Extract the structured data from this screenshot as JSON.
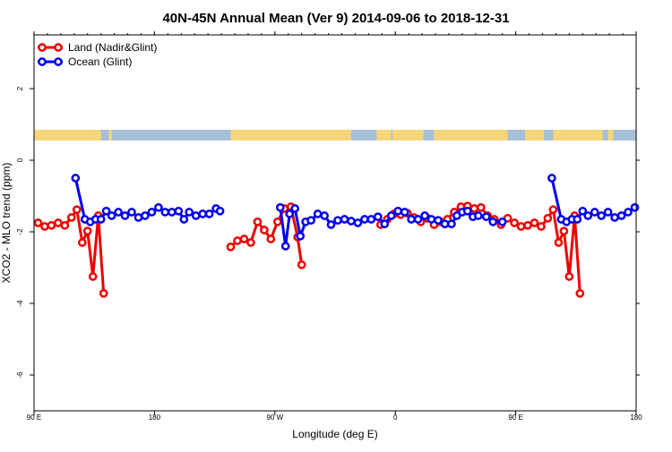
{
  "chart_data": {
    "type": "line",
    "title": "40N-45N Annual Mean (Ver 9)   2014-09-06 to 2018-12-31",
    "xlabel": "Longitude (deg E)",
    "ylabel": "XCO2 - MLO trend (ppm)",
    "xlim": [
      90,
      540
    ],
    "ylim": [
      -7,
      3.5
    ],
    "x_ticks": [
      {
        "value": 90,
        "label": "90 E"
      },
      {
        "value": 180,
        "label": "180"
      },
      {
        "value": 270,
        "label": "90 W"
      },
      {
        "value": 360,
        "label": "0"
      },
      {
        "value": 450,
        "label": "90 E"
      },
      {
        "value": 540,
        "label": "180"
      }
    ],
    "y_ticks": [
      {
        "value": 2,
        "label": "2"
      },
      {
        "value": 0,
        "label": "0"
      },
      {
        "value": -2,
        "label": "-2"
      },
      {
        "value": -4,
        "label": "-4"
      },
      {
        "value": -6,
        "label": "-6"
      }
    ],
    "legend_position": "top-left",
    "land_ocean_strip": {
      "y_range": [
        0.55,
        0.85
      ],
      "ocean_color": "#a8bfd9",
      "land_color": "#f7d67a",
      "land_segments": [
        [
          90,
          140
        ],
        [
          146,
          148
        ],
        [
          237,
          327
        ],
        [
          346,
          357
        ],
        [
          358,
          381
        ],
        [
          389,
          444
        ],
        [
          457,
          471
        ],
        [
          478,
          515
        ],
        [
          519,
          523
        ]
      ]
    },
    "series": [
      {
        "name": "Land (Nadir&Glint)",
        "color": "#ee0000",
        "segments": [
          [
            [
              93,
              -1.75
            ],
            [
              98,
              -1.85
            ],
            [
              103,
              -1.82
            ],
            [
              108,
              -1.75
            ],
            [
              113,
              -1.82
            ],
            [
              118,
              -1.6
            ],
            [
              122,
              -1.38
            ],
            [
              126,
              -2.3
            ],
            [
              130,
              -1.98
            ],
            [
              134,
              -3.25
            ],
            [
              138,
              -1.55
            ],
            [
              142,
              -3.72
            ]
          ],
          [
            [
              237,
              -2.42
            ],
            [
              242,
              -2.25
            ],
            [
              247,
              -2.2
            ],
            [
              252,
              -2.3
            ],
            [
              257,
              -1.72
            ],
            [
              262,
              -1.95
            ],
            [
              267,
              -2.2
            ],
            [
              272,
              -1.72
            ],
            [
              277,
              -1.35
            ],
            [
              282,
              -1.3
            ],
            [
              287,
              -2.15
            ],
            [
              290,
              -2.92
            ]
          ],
          [
            [
              349,
              -1.8
            ],
            [
              354,
              -1.65
            ],
            [
              359,
              -1.5
            ],
            [
              364,
              -1.52
            ],
            [
              369,
              -1.48
            ],
            [
              374,
              -1.6
            ],
            [
              379,
              -1.72
            ],
            [
              384,
              -1.62
            ],
            [
              389,
              -1.8
            ],
            [
              394,
              -1.72
            ],
            [
              399,
              -1.65
            ],
            [
              404,
              -1.45
            ],
            [
              409,
              -1.3
            ],
            [
              414,
              -1.28
            ],
            [
              419,
              -1.35
            ],
            [
              424,
              -1.32
            ],
            [
              429,
              -1.55
            ],
            [
              434,
              -1.65
            ],
            [
              439,
              -1.8
            ],
            [
              444,
              -1.62
            ],
            [
              449,
              -1.75
            ],
            [
              454,
              -1.85
            ],
            [
              459,
              -1.82
            ],
            [
              464,
              -1.75
            ],
            [
              469,
              -1.85
            ],
            [
              474,
              -1.62
            ],
            [
              478,
              -1.38
            ],
            [
              482,
              -2.3
            ],
            [
              486,
              -1.98
            ],
            [
              490,
              -3.25
            ],
            [
              494,
              -1.55
            ],
            [
              498,
              -3.72
            ]
          ]
        ]
      },
      {
        "name": "Ocean (Glint)",
        "color": "#0000ee",
        "segments": [
          [
            [
              121,
              -0.5
            ],
            [
              128,
              -1.65
            ],
            [
              132,
              -1.72
            ],
            [
              136,
              -1.65
            ],
            [
              140,
              -1.65
            ],
            [
              144,
              -1.42
            ],
            [
              148,
              -1.55
            ],
            [
              153,
              -1.45
            ],
            [
              158,
              -1.55
            ],
            [
              163,
              -1.45
            ],
            [
              168,
              -1.6
            ],
            [
              173,
              -1.55
            ],
            [
              178,
              -1.45
            ],
            [
              183,
              -1.32
            ],
            [
              188,
              -1.45
            ],
            [
              193,
              -1.45
            ],
            [
              198,
              -1.42
            ],
            [
              202,
              -1.65
            ],
            [
              206,
              -1.45
            ],
            [
              211,
              -1.55
            ],
            [
              216,
              -1.5
            ],
            [
              221,
              -1.5
            ],
            [
              226,
              -1.35
            ],
            [
              229,
              -1.42
            ]
          ],
          [
            [
              274,
              -1.32
            ],
            [
              278,
              -2.4
            ],
            [
              281,
              -1.5
            ],
            [
              285,
              -1.35
            ],
            [
              289,
              -2.12
            ],
            [
              293,
              -1.72
            ],
            [
              297,
              -1.68
            ],
            [
              302,
              -1.5
            ],
            [
              307,
              -1.55
            ],
            [
              312,
              -1.8
            ],
            [
              317,
              -1.68
            ],
            [
              322,
              -1.65
            ],
            [
              327,
              -1.7
            ],
            [
              332,
              -1.75
            ],
            [
              337,
              -1.65
            ],
            [
              342,
              -1.65
            ],
            [
              347,
              -1.58
            ],
            [
              352,
              -1.78
            ],
            [
              357,
              -1.55
            ],
            [
              362,
              -1.42
            ],
            [
              367,
              -1.45
            ],
            [
              372,
              -1.65
            ],
            [
              377,
              -1.65
            ],
            [
              382,
              -1.55
            ],
            [
              387,
              -1.65
            ],
            [
              392,
              -1.68
            ],
            [
              397,
              -1.78
            ],
            [
              402,
              -1.78
            ],
            [
              406,
              -1.55
            ],
            [
              410,
              -1.45
            ],
            [
              414,
              -1.42
            ],
            [
              418,
              -1.58
            ],
            [
              422,
              -1.55
            ],
            [
              428,
              -1.58
            ],
            [
              433,
              -1.72
            ],
            [
              440,
              -1.72
            ]
          ],
          [
            [
              477,
              -0.5
            ],
            [
              484,
              -1.65
            ],
            [
              488,
              -1.72
            ],
            [
              492,
              -1.65
            ],
            [
              496,
              -1.65
            ],
            [
              500,
              -1.42
            ],
            [
              504,
              -1.55
            ],
            [
              509,
              -1.45
            ],
            [
              514,
              -1.55
            ],
            [
              519,
              -1.45
            ],
            [
              524,
              -1.6
            ],
            [
              529,
              -1.55
            ],
            [
              534,
              -1.45
            ],
            [
              539,
              -1.32
            ]
          ]
        ]
      }
    ]
  }
}
